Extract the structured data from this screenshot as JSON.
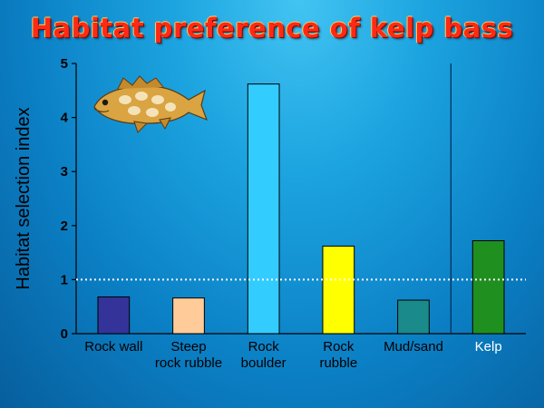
{
  "chart_data": {
    "type": "bar",
    "title": "Habitat preference of kelp bass",
    "ylabel": "Habitat selection index",
    "xlabel": "",
    "ylim": [
      0,
      5
    ],
    "yticks": [
      "0",
      "1",
      "2",
      "3",
      "4",
      "5"
    ],
    "categories": [
      [
        "Rock wall"
      ],
      [
        "Steep",
        "rock rubble"
      ],
      [
        "Rock",
        "boulder"
      ],
      [
        "Rock",
        "rubble"
      ],
      [
        "Mud/sand"
      ],
      [
        "Kelp"
      ]
    ],
    "values": [
      0.68,
      0.66,
      4.62,
      1.62,
      0.62,
      1.72
    ],
    "bar_colors": [
      "#333399",
      "#ffcc99",
      "#33ccff",
      "#ffff00",
      "#1a8a8a",
      "#1f8f1f"
    ],
    "reference_line": 1,
    "separator_before_category": 5,
    "grid": false,
    "legend": "none"
  },
  "decoration": {
    "icon": "kelp-bass-fish-icon"
  }
}
